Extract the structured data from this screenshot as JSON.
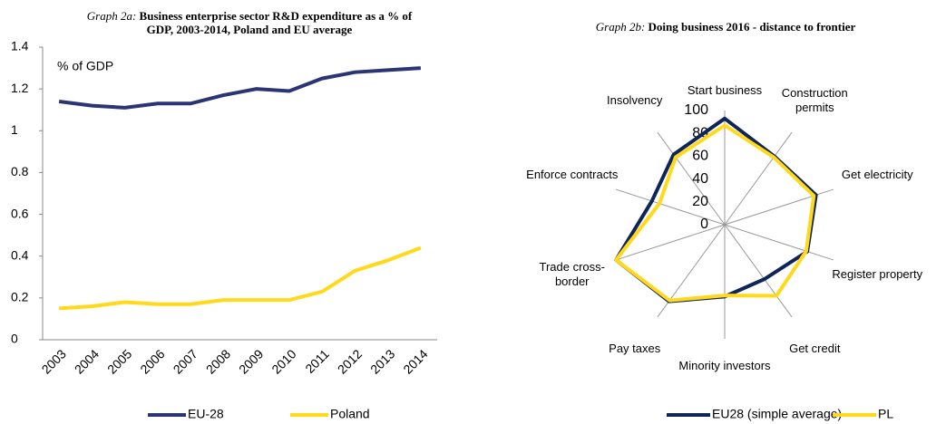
{
  "chart_data": [
    {
      "type": "line",
      "title_label": "Graph 2a:",
      "title": "Business enterprise sector R&D expenditure as a % of GDP, 2003-2014, Poland and EU average",
      "ylabel": "% of GDP",
      "categories": [
        "2003",
        "2004",
        "2005",
        "2006",
        "2007",
        "2008",
        "2009",
        "2010",
        "2011",
        "2012",
        "2013",
        "2014"
      ],
      "series": [
        {
          "name": "EU-28",
          "color": "#2b3475",
          "values": [
            1.14,
            1.12,
            1.11,
            1.13,
            1.13,
            1.17,
            1.2,
            1.19,
            1.25,
            1.28,
            1.29,
            1.3
          ]
        },
        {
          "name": "Poland",
          "color": "#ffd91a",
          "values": [
            0.15,
            0.16,
            0.18,
            0.17,
            0.17,
            0.19,
            0.19,
            0.19,
            0.23,
            0.33,
            0.38,
            0.44
          ]
        }
      ],
      "ylim": [
        0,
        1.4
      ],
      "yticks": [
        0,
        0.2,
        0.4,
        0.6,
        0.8,
        1,
        1.2,
        1.4
      ]
    },
    {
      "type": "radar",
      "title_label": "Graph 2b:",
      "title": "Doing business 2016 - distance to frontier",
      "categories": [
        "Start business",
        "Construction permits",
        "Get electricity",
        "Register property",
        "Get credit",
        "Minority investors",
        "Pay taxes",
        "Trade cross-border",
        "Enforce contracts",
        "Insolvency"
      ],
      "series": [
        {
          "name": "EU28 (simple average)",
          "color": "#0f2557",
          "values": [
            93,
            74,
            84,
            76,
            59,
            63,
            83,
            100,
            67,
            76
          ]
        },
        {
          "name": "PL",
          "color": "#ffd91a",
          "values": [
            87,
            73,
            82,
            75,
            77,
            62,
            82,
            100,
            60,
            73
          ]
        }
      ],
      "rlim": [
        0,
        100
      ],
      "rticks": [
        0,
        20,
        40,
        60,
        80,
        100
      ]
    }
  ]
}
